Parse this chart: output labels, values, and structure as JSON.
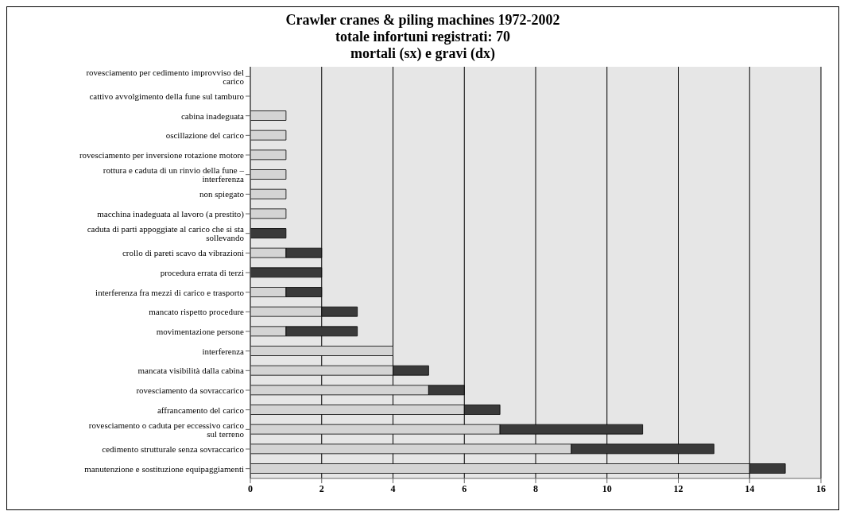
{
  "chart_data": {
    "type": "bar",
    "orientation": "horizontal",
    "stacked": true,
    "title": "Crawler cranes & piling machines 1972-2002\ntotale infortuni registrati: 70\nmortali (sx) e gravi (dx)",
    "categories": [
      "rovesciamento per cedimento improvviso del carico",
      "cattivo avvolgimento della fune sul tamburo",
      "cabina inadeguata",
      "oscillazione del carico",
      "rovesciamento per inversione rotazione motore",
      "rottura e caduta di un rinvio della fune – interferenza",
      "non spiegato",
      "macchina inadeguata al lavoro (a prestito)",
      "caduta di parti appoggiate al carico che si sta sollevando",
      "crollo di pareti scavo da vibrazioni",
      "procedura errata di terzi",
      "interferenza fra mezzi di carico e trasporto",
      "mancato rispetto procedure",
      "movimentazione persone",
      "interferenza",
      "mancata visibilità dalla cabina",
      "rovesciamento da sovraccarico",
      "affrancamento del carico",
      "rovesciamento o caduta per eccessivo carico sul terreno",
      "cedimento strutturale senza sovraccarico",
      "manutenzione e sostituzione equipaggiamenti"
    ],
    "series": [
      {
        "color": "#d4d4d4",
        "values": [
          0,
          0,
          1,
          1,
          1,
          1,
          1,
          1,
          0,
          1,
          0,
          1,
          2,
          1,
          4,
          4,
          5,
          6,
          7,
          9,
          14
        ]
      },
      {
        "color": "#3a3a3a",
        "values": [
          0,
          0,
          0,
          0,
          0,
          0,
          0,
          0,
          1,
          1,
          2,
          1,
          1,
          2,
          0,
          1,
          1,
          1,
          4,
          4,
          1
        ]
      }
    ],
    "xlim": [
      0,
      16
    ],
    "xticks": [
      0,
      2,
      4,
      6,
      8,
      10,
      12,
      14,
      16
    ],
    "grid": "x",
    "legend": false
  }
}
